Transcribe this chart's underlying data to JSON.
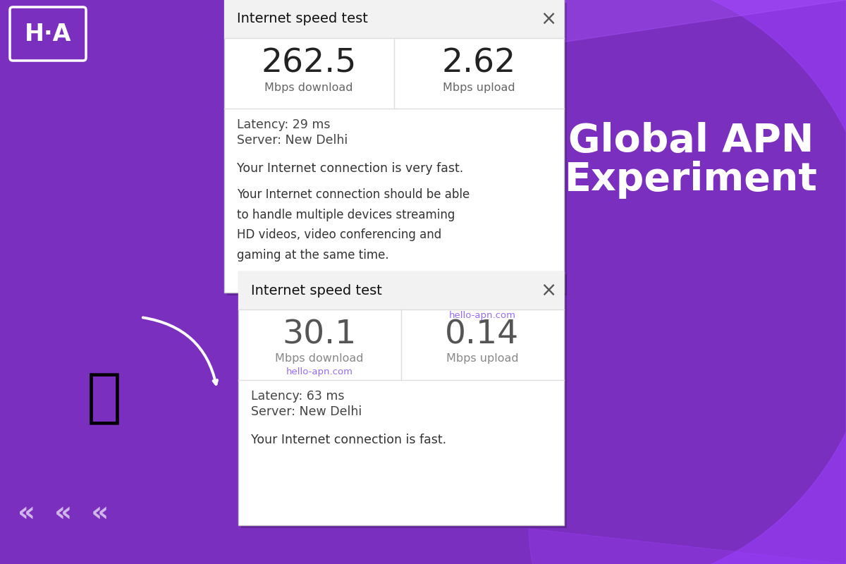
{
  "bg_color": "#7B2FBE",
  "title_line1": "Global APN",
  "title_line2": "Experiment",
  "title_color": "#FFFFFF",
  "card1": {
    "header": "Internet speed test",
    "download": "262.5",
    "download_label": "Mbps download",
    "upload": "2.62",
    "upload_label": "Mbps upload",
    "latency": "Latency: 29 ms",
    "server": "Server: New Delhi",
    "msg1": "Your Internet connection is very fast.",
    "msg2_line1": "Your Internet connection should be able",
    "msg2_line2": "to handle multiple devices streaming",
    "msg2_line3": "HD videos, video conferencing and",
    "msg2_line4": "gaming at the same time."
  },
  "card2": {
    "header": "Internet speed test",
    "download": "30.1",
    "download_label": "Mbps download",
    "upload": "0.14",
    "upload_label": "Mbps upload",
    "watermark_top": "hello-apn.com",
    "watermark_bottom": "hello-apn.com",
    "latency": "Latency: 63 ms",
    "server": "Server: New Delhi",
    "msg1": "Your Internet connection is fast."
  },
  "logo_text": "H·A",
  "watermark_color": "#8B5CF6",
  "chevrons": "«  «  «"
}
